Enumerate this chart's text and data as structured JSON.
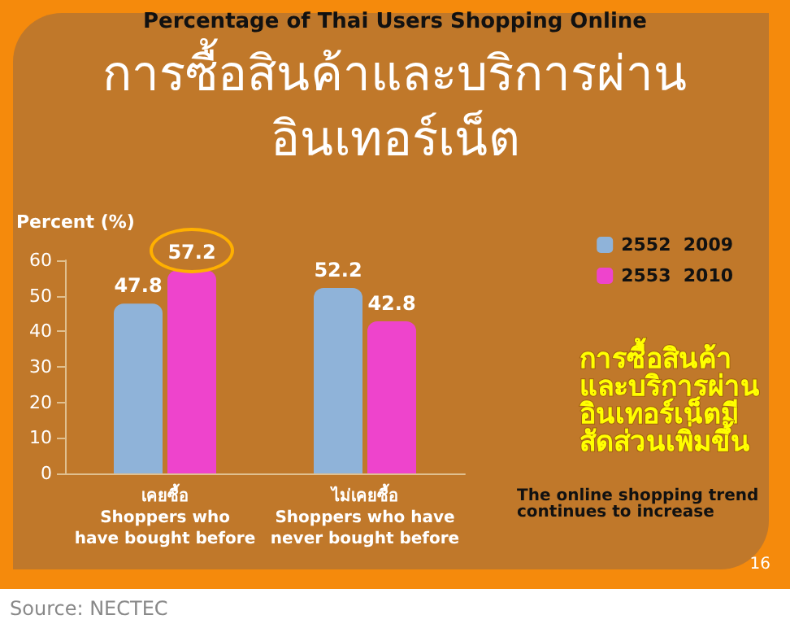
{
  "chart_data": {
    "type": "bar",
    "title": "Percentage of Thai Users Shopping Online",
    "subtitle": "การซื้อสินค้าและบริการผ่าน\nอินเทอร์เน็ต",
    "ylabel": "Percent (%)",
    "categories": [
      "เคยซื้อ\nShoppers who\nhave bought before",
      "ไม่เคยซื้อ\nShoppers who have\nnever bought before"
    ],
    "series": [
      {
        "name": "2552  2009",
        "color": "#8fb3d9",
        "values": [
          47.8,
          52.2
        ]
      },
      {
        "name": "2553  2010",
        "color": "#ee44cc",
        "values": [
          57.2,
          42.8
        ]
      }
    ],
    "ylim": [
      0,
      60
    ],
    "yticks": [
      0,
      10,
      20,
      30,
      40,
      50,
      60
    ],
    "data_labels": true,
    "legend": "top right",
    "annotations": [
      "การซื้อสินค้า\nและบริการผ่าน\nอินเทอร์เน็ตมี\nสัดส่วนเพิ่มขึ้น",
      "The online shopping trend\ncontinues to increase",
      "16",
      "Source: NECTEC"
    ]
  }
}
